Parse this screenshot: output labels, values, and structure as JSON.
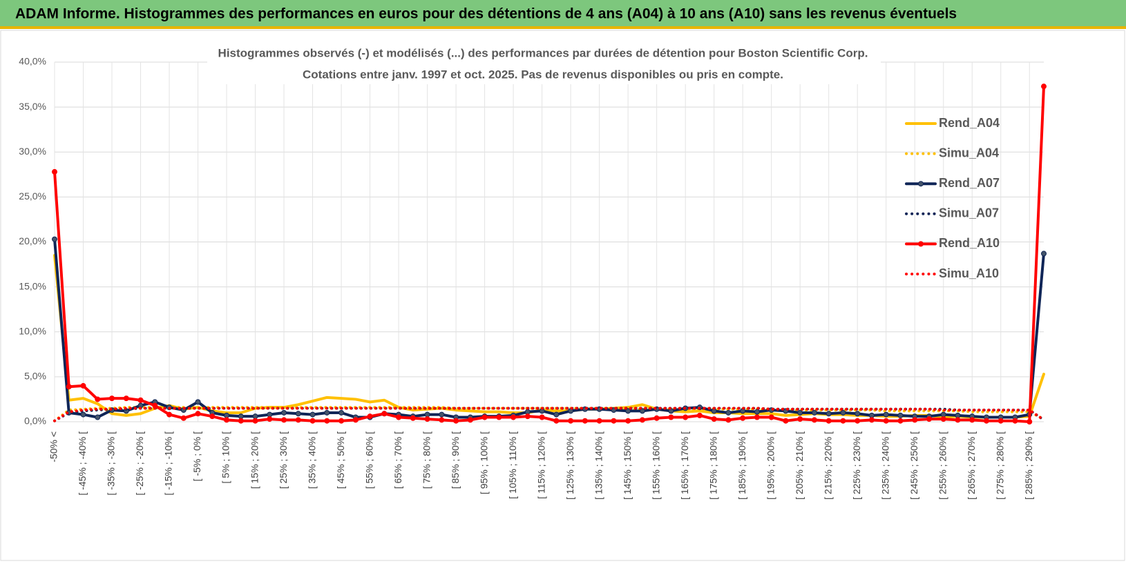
{
  "header": {
    "title": "ADAM Informe. Histogrammes des performances en euros pour des détentions de 4 ans (A04) à 10 ans (A10) sans les revenus éventuels"
  },
  "chart_data": {
    "type": "line",
    "title": "Histogrammes observés (-) et modélisés (...) des performances par durées de détention pour Boston Scientific Corp.",
    "subtitle": "Cotations entre janv. 1997 et oct. 2025. Pas de revenus disponibles ou pris en compte.",
    "categories": [
      "-50% <",
      null,
      "[ -45% ; -40% [",
      null,
      "[ -35% ; -30% [",
      null,
      "[ -25% ; -20% [",
      null,
      "[ -15% ; -10% [",
      null,
      "[ -5% ; 0% [",
      null,
      "[ 5% ; 10% [",
      null,
      "[ 15% ; 20% [",
      null,
      "[ 25% ; 30% [",
      null,
      "[ 35% ; 40% [",
      null,
      "[ 45% ; 50% [",
      null,
      "[ 55% ; 60% [",
      null,
      "[ 65% ; 70% [",
      null,
      "[ 75% ; 80% [",
      null,
      "[ 85% ; 90% [",
      null,
      "[ 95% ; 100% [",
      null,
      "[ 105% ; 110% [",
      null,
      "[ 115% ; 120% [",
      null,
      "[ 125% ; 130% [",
      null,
      "[ 135% ; 140% [",
      null,
      "[ 145% ; 150% [",
      null,
      "[ 155% ; 160% [",
      null,
      "[ 165% ; 170% [",
      null,
      "[ 175% ; 180% [",
      null,
      "[ 185% ; 190% [",
      null,
      "[ 195% ; 200% [",
      null,
      "[ 205% ; 210% [",
      null,
      "[ 215% ; 220% [",
      null,
      "[ 225% ; 230% [",
      null,
      "[ 235% ; 240% [",
      null,
      "[ 245% ; 250% [",
      null,
      "[ 255% ; 260% [",
      null,
      "[ 265% ; 270% [",
      null,
      "[ 275% ; 280% [",
      null,
      "[ 285% ; 290% [",
      null
    ],
    "series": [
      {
        "name": "Rend_A04",
        "color": "#ffc000",
        "style": "solid",
        "markers": false,
        "values": [
          18.5,
          2.4,
          2.6,
          2.0,
          0.9,
          0.7,
          0.9,
          1.5,
          1.8,
          1.4,
          1.6,
          1.2,
          1.0,
          1.0,
          1.5,
          1.6,
          1.6,
          1.9,
          2.3,
          2.7,
          2.6,
          2.5,
          2.2,
          2.4,
          1.6,
          1.3,
          1.4,
          1.5,
          1.3,
          1.2,
          1.1,
          1.1,
          1.0,
          1.0,
          1.3,
          1.2,
          1.2,
          1.4,
          1.4,
          1.5,
          1.6,
          1.9,
          1.4,
          1.2,
          1.1,
          1.2,
          1.0,
          1.0,
          0.9,
          0.9,
          0.9,
          0.7,
          0.8,
          0.9,
          0.8,
          0.8,
          0.7,
          0.7,
          0.6,
          0.6,
          0.7,
          0.7,
          0.5,
          0.6,
          0.5,
          0.5,
          0.5,
          0.5,
          0.6,
          5.3
        ]
      },
      {
        "name": "Simu_A04",
        "color": "#ffc000",
        "style": "dotted",
        "markers": false,
        "values": [
          0.1,
          1.3,
          1.4,
          1.5,
          1.5,
          1.6,
          1.6,
          1.6,
          1.6,
          1.6,
          1.6,
          1.6,
          1.6,
          1.6,
          1.6,
          1.6,
          1.6,
          1.6,
          1.6,
          1.6,
          1.6,
          1.6,
          1.6,
          1.6,
          1.6,
          1.6,
          1.6,
          1.6,
          1.5,
          1.5,
          1.5,
          1.5,
          1.5,
          1.5,
          1.5,
          1.5,
          1.5,
          1.5,
          1.5,
          1.5,
          1.4,
          1.4,
          1.4,
          1.4,
          1.4,
          1.4,
          1.4,
          1.4,
          1.4,
          1.4,
          1.3,
          1.3,
          1.3,
          1.3,
          1.3,
          1.3,
          1.3,
          1.3,
          1.2,
          1.2,
          1.2,
          1.2,
          1.2,
          1.2,
          1.1,
          1.1,
          1.1,
          1.1,
          1.1,
          0.3
        ]
      },
      {
        "name": "Rend_A07",
        "color": "#0f2557",
        "style": "solid",
        "markers": true,
        "values": [
          20.3,
          1.0,
          0.8,
          0.5,
          1.3,
          1.2,
          1.8,
          2.2,
          1.6,
          1.3,
          2.2,
          1.0,
          0.7,
          0.6,
          0.6,
          0.8,
          1.0,
          0.9,
          0.8,
          1.0,
          1.0,
          0.5,
          0.5,
          0.9,
          0.8,
          0.6,
          0.8,
          0.8,
          0.5,
          0.5,
          0.6,
          0.6,
          0.7,
          1.1,
          1.2,
          0.8,
          1.2,
          1.4,
          1.4,
          1.3,
          1.2,
          1.2,
          1.4,
          1.2,
          1.5,
          1.6,
          1.2,
          1.0,
          1.2,
          1.1,
          1.3,
          1.2,
          1.0,
          1.0,
          0.9,
          1.0,
          0.9,
          0.7,
          0.8,
          0.7,
          0.6,
          0.6,
          0.8,
          0.7,
          0.6,
          0.5,
          0.5,
          0.5,
          0.8,
          18.7
        ]
      },
      {
        "name": "Simu_A07",
        "color": "#0f2557",
        "style": "dotted",
        "markers": false,
        "values": [
          0.1,
          1.0,
          1.2,
          1.3,
          1.4,
          1.4,
          1.5,
          1.5,
          1.5,
          1.5,
          1.5,
          1.5,
          1.5,
          1.5,
          1.5,
          1.5,
          1.5,
          1.5,
          1.5,
          1.5,
          1.5,
          1.5,
          1.5,
          1.5,
          1.5,
          1.5,
          1.5,
          1.5,
          1.5,
          1.5,
          1.5,
          1.5,
          1.5,
          1.5,
          1.5,
          1.5,
          1.5,
          1.5,
          1.5,
          1.5,
          1.5,
          1.5,
          1.5,
          1.5,
          1.5,
          1.5,
          1.5,
          1.5,
          1.5,
          1.5,
          1.4,
          1.4,
          1.4,
          1.4,
          1.4,
          1.4,
          1.4,
          1.4,
          1.4,
          1.4,
          1.4,
          1.4,
          1.4,
          1.3,
          1.3,
          1.3,
          1.3,
          1.3,
          1.3,
          0.2
        ]
      },
      {
        "name": "Rend_A10",
        "color": "#ff0000",
        "style": "solid",
        "markers": true,
        "values": [
          27.8,
          3.9,
          4.0,
          2.5,
          2.6,
          2.6,
          2.4,
          1.8,
          0.8,
          0.4,
          0.9,
          0.6,
          0.2,
          0.1,
          0.1,
          0.3,
          0.2,
          0.2,
          0.1,
          0.1,
          0.1,
          0.2,
          0.6,
          0.9,
          0.5,
          0.4,
          0.3,
          0.2,
          0.1,
          0.2,
          0.5,
          0.5,
          0.5,
          0.6,
          0.5,
          0.1,
          0.1,
          0.1,
          0.1,
          0.1,
          0.1,
          0.2,
          0.4,
          0.5,
          0.5,
          0.7,
          0.3,
          0.2,
          0.4,
          0.5,
          0.5,
          0.1,
          0.3,
          0.2,
          0.1,
          0.1,
          0.1,
          0.2,
          0.1,
          0.1,
          0.2,
          0.3,
          0.3,
          0.2,
          0.2,
          0.1,
          0.1,
          0.1,
          0.0,
          37.3
        ]
      },
      {
        "name": "Simu_A10",
        "color": "#ff0000",
        "style": "dotted",
        "markers": false,
        "values": [
          0.1,
          1.1,
          1.3,
          1.4,
          1.4,
          1.5,
          1.5,
          1.5,
          1.5,
          1.5,
          1.5,
          1.5,
          1.5,
          1.5,
          1.5,
          1.5,
          1.5,
          1.5,
          1.5,
          1.5,
          1.5,
          1.5,
          1.5,
          1.5,
          1.5,
          1.5,
          1.5,
          1.5,
          1.5,
          1.5,
          1.5,
          1.5,
          1.5,
          1.5,
          1.5,
          1.5,
          1.5,
          1.5,
          1.5,
          1.5,
          1.5,
          1.5,
          1.5,
          1.5,
          1.5,
          1.5,
          1.5,
          1.5,
          1.5,
          1.5,
          1.4,
          1.4,
          1.4,
          1.4,
          1.4,
          1.4,
          1.4,
          1.4,
          1.4,
          1.4,
          1.4,
          1.4,
          1.3,
          1.3,
          1.3,
          1.3,
          1.3,
          1.3,
          1.3,
          0.2
        ]
      }
    ],
    "ylim": [
      0,
      40
    ],
    "yticks": [
      {
        "value": 0,
        "label": "0,0%"
      },
      {
        "value": 5,
        "label": "5,0%"
      },
      {
        "value": 10,
        "label": "10,0%"
      },
      {
        "value": 15,
        "label": "15,0%"
      },
      {
        "value": 20,
        "label": "20,0%"
      },
      {
        "value": 25,
        "label": "25,0%"
      },
      {
        "value": 30,
        "label": "30,0%"
      },
      {
        "value": 35,
        "label": "35,0%"
      },
      {
        "value": 40,
        "label": "40,0%"
      }
    ],
    "grid": true,
    "legend": "right"
  }
}
